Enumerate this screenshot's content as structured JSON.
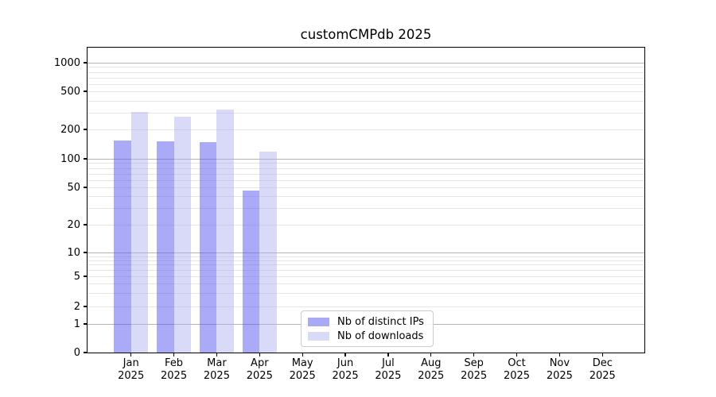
{
  "chart_data": {
    "type": "bar",
    "title": "customCMPdb 2025",
    "x_labels": [
      [
        "Jan",
        "2025"
      ],
      [
        "Feb",
        "2025"
      ],
      [
        "Mar",
        "2025"
      ],
      [
        "Apr",
        "2025"
      ],
      [
        "May",
        "2025"
      ],
      [
        "Jun",
        "2025"
      ],
      [
        "Jul",
        "2025"
      ],
      [
        "Aug",
        "2025"
      ],
      [
        "Sep",
        "2025"
      ],
      [
        "Oct",
        "2025"
      ],
      [
        "Nov",
        "2025"
      ],
      [
        "Dec",
        "2025"
      ]
    ],
    "series": [
      {
        "name": "Nb of distinct IPs",
        "color": "rgba(85,85,238,0.5)",
        "color_on_white": "#a9a9f5",
        "values": [
          155,
          150,
          147,
          46,
          0,
          0,
          0,
          0,
          0,
          0,
          0,
          0
        ]
      },
      {
        "name": "Nb of downloads",
        "color": "rgba(170,170,240,0.45)",
        "color_on_white": "#d9d9f8",
        "values": [
          305,
          270,
          320,
          118,
          0,
          0,
          0,
          0,
          0,
          0,
          0,
          0
        ]
      }
    ],
    "y_ticks": [
      0,
      1,
      2,
      5,
      10,
      20,
      50,
      100,
      200,
      500,
      1000
    ],
    "ylim": [
      0,
      1000
    ],
    "y_scale": "symlog",
    "grid": "both",
    "legend_position": "lower-center",
    "colors": {
      "grid_major": "#b4b4b4",
      "grid_minor": "#e5e5e5",
      "spine": "#000000",
      "background": "#ffffff",
      "legend_border": "#cccccc"
    }
  }
}
